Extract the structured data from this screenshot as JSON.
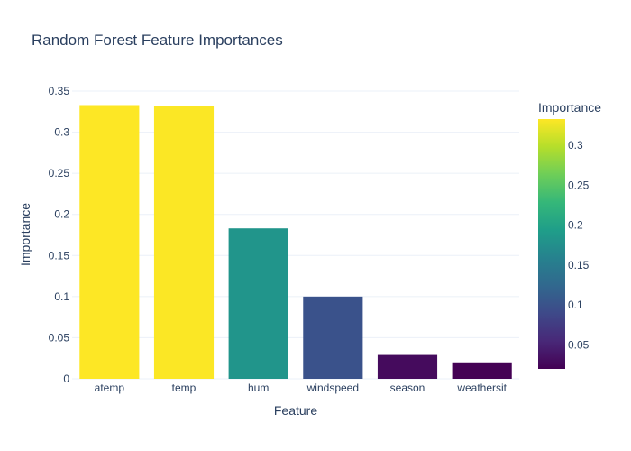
{
  "chart_data": {
    "type": "bar",
    "title": "Random Forest Feature Importances",
    "xlabel": "Feature",
    "ylabel": "Importance",
    "categories": [
      "atemp",
      "temp",
      "hum",
      "windspeed",
      "season",
      "weathersit"
    ],
    "values": [
      0.333,
      0.332,
      0.183,
      0.1,
      0.029,
      0.02
    ],
    "ylim": [
      0,
      0.35
    ],
    "yticks": [
      0,
      0.05,
      0.1,
      0.15,
      0.2,
      0.25,
      0.3,
      0.35
    ],
    "ytick_labels": [
      "0",
      "0.05",
      "0.1",
      "0.15",
      "0.2",
      "0.25",
      "0.3",
      "0.35"
    ],
    "grid": true,
    "legend": "none",
    "colorscale": {
      "name": "Viridis",
      "title": "Importance",
      "range": [
        0.02,
        0.333
      ],
      "ticks": [
        0.05,
        0.1,
        0.15,
        0.2,
        0.25,
        0.3
      ],
      "tick_labels": [
        "0.05",
        "0.1",
        "0.15",
        "0.2",
        "0.25",
        "0.3"
      ],
      "stops": [
        "#440154",
        "#482878",
        "#3e4989",
        "#31688e",
        "#26828e",
        "#1f9e89",
        "#35b779",
        "#6ece58",
        "#b5de2b",
        "#fde725"
      ]
    }
  }
}
